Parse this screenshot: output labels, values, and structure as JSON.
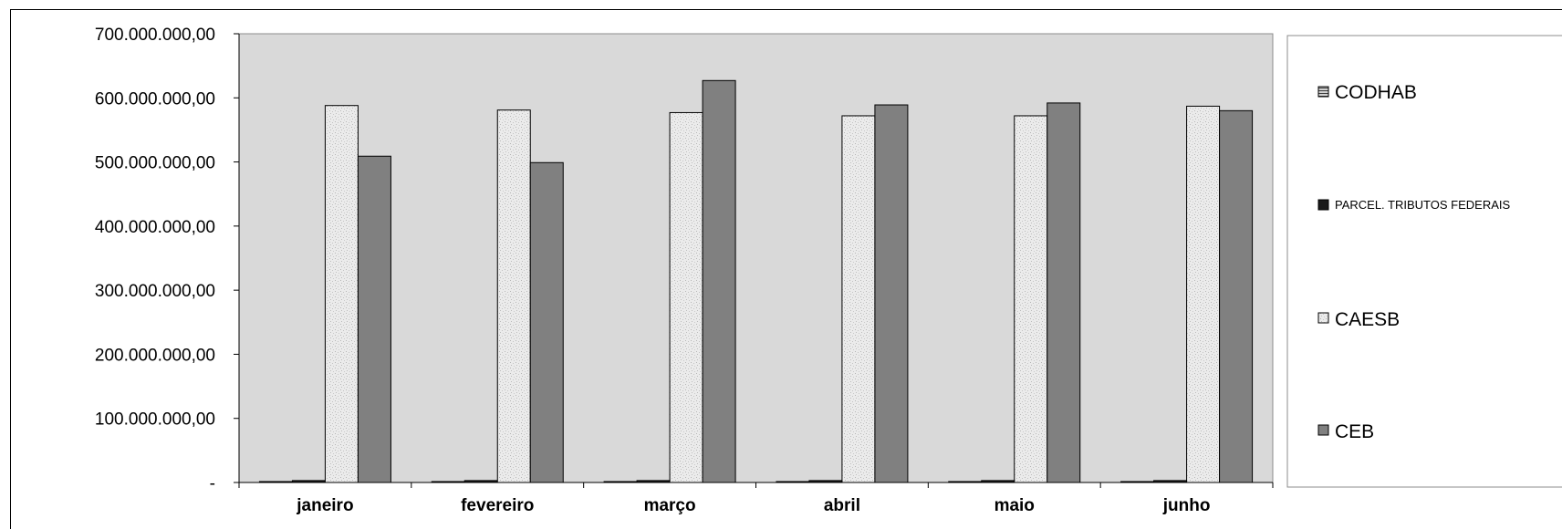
{
  "chart_data": {
    "type": "bar",
    "categories": [
      "janeiro",
      "fevereiro",
      "março",
      "abril",
      "maio",
      "junho"
    ],
    "series": [
      {
        "name": "CODHAB",
        "values": [
          500000,
          500000,
          500000,
          500000,
          500000,
          500000
        ],
        "color": "#606060",
        "pattern": "horizontal-stripes"
      },
      {
        "name": "PARCEL. TRIBUTOS FEDERAIS",
        "values": [
          3000000,
          3000000,
          3000000,
          3000000,
          3000000,
          3000000
        ],
        "color": "#1a1a1a",
        "pattern": "solid"
      },
      {
        "name": "CAESB",
        "values": [
          588000000,
          581000000,
          577000000,
          572000000,
          572000000,
          587000000
        ],
        "color": "#e8e8e8",
        "pattern": "speckled"
      },
      {
        "name": "CEB",
        "values": [
          509000000,
          499000000,
          627000000,
          589000000,
          592000000,
          580000000
        ],
        "color": "#808080",
        "pattern": "solid"
      }
    ],
    "ylim": [
      0,
      700000000
    ],
    "yticks": [
      "-",
      "100.000.000,00",
      "200.000.000,00",
      "300.000.000,00",
      "400.000.000,00",
      "500.000.000,00",
      "600.000.000,00",
      "700.000.000,00"
    ],
    "title": "",
    "xlabel": "",
    "ylabel": "",
    "grid": false,
    "plot_background": "#d9d9d9",
    "legend_placement": "right"
  }
}
